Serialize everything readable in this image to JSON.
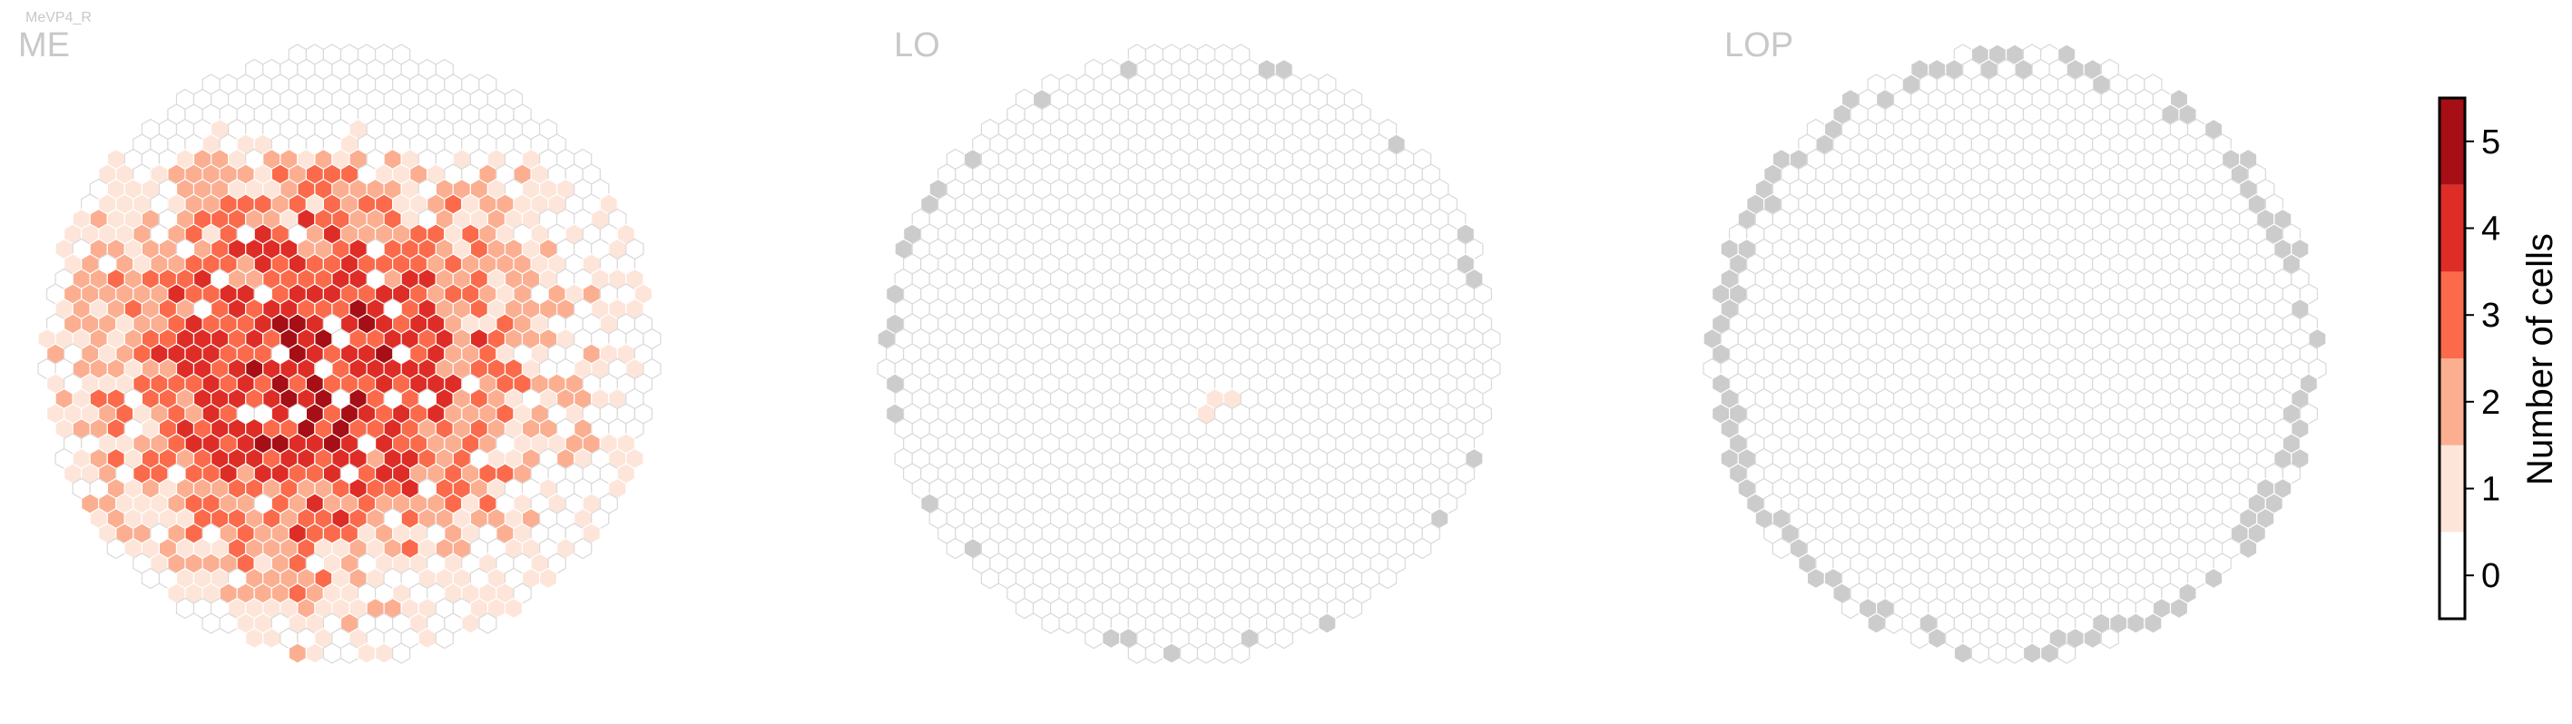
{
  "figure_label": "MeVP4_R",
  "chart_data": [
    {
      "type": "heatmap",
      "title": "ME",
      "description_value_kind": "count per hexagonal column",
      "regions": [
        {
          "rows": [
            0,
            3
          ],
          "level": "light"
        },
        {
          "rows": [
            4,
            9
          ],
          "level": "mixed-light"
        },
        {
          "rows": [
            10,
            30
          ],
          "level": "mixed-high"
        },
        {
          "rows": [
            31,
            35
          ],
          "level": "mixed-light"
        }
      ],
      "value_range": [
        0,
        5
      ],
      "highest_density_area": "center-left",
      "empty_columns": "scattered white hexagons across the grid"
    },
    {
      "type": "heatmap",
      "title": "LO",
      "nonzero_cells": [
        {
          "row": 21,
          "col": 22,
          "value": 1
        },
        {
          "row": 21,
          "col": 24,
          "value": 1
        },
        {
          "row": 22,
          "col": 24,
          "value": 1
        }
      ],
      "missing_columns": "gray hexagons along the outer border"
    },
    {
      "type": "heatmap",
      "title": "LOP",
      "nonzero_cells": [],
      "missing_columns": "gray hexagons along the outer border"
    }
  ],
  "colorbar": {
    "label": "Number of cells",
    "ticks": [
      "0",
      "1",
      "2",
      "3",
      "4",
      "5"
    ],
    "colors": [
      "#ffffff",
      "#fee5d9",
      "#fcae91",
      "#fb6a4a",
      "#de2d26",
      "#a50f15"
    ]
  },
  "colors": {
    "empty_cell_fill": "#ffffff",
    "empty_cell_stroke": "#d9d9d9",
    "missing_cell_fill": "#cccccc",
    "panel_title": "#c8c8c8"
  }
}
